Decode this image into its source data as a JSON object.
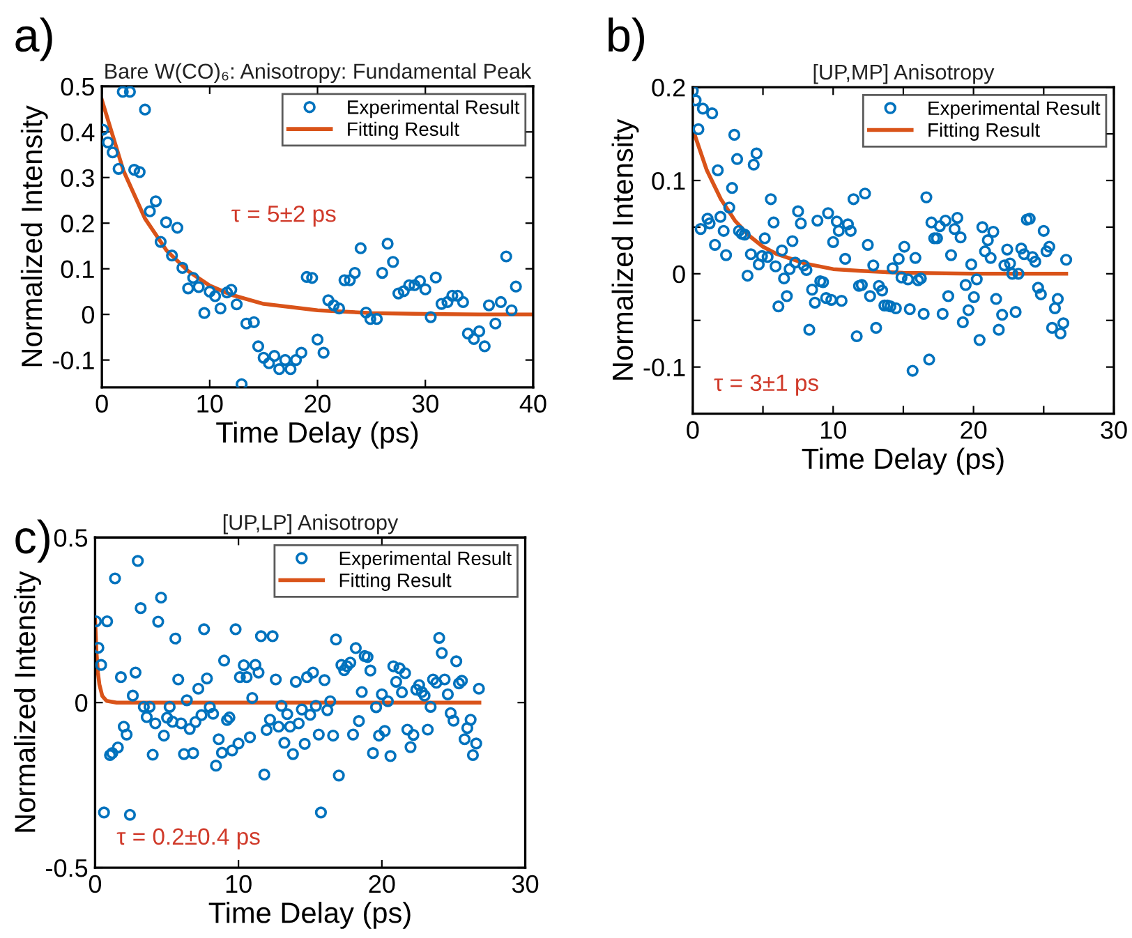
{
  "chart_data": [
    {
      "type": "scatter",
      "title": "Bare W(CO)₆: Anisotropy: Fundamental Peak",
      "xlabel": "Time Delay (ps)",
      "ylabel": "Normalized Intensity",
      "annotations": [
        "a)",
        "τ = 5±2 ps"
      ],
      "legend": "top right",
      "marker": "circle",
      "xlim": [
        0,
        40
      ],
      "ylim": [
        -0.16,
        0.5
      ],
      "xticks": [
        0,
        10,
        20,
        30,
        40
      ],
      "yticks": [
        -0.1,
        0,
        0.1,
        0.2,
        0.3,
        0.4,
        0.5
      ],
      "series": [
        {
          "name": "Experimental Result",
          "color": "#0072bd",
          "x": [
            0.1,
            0.56,
            1.0,
            1.55,
            1.94,
            2.6,
            3.0,
            3.5,
            4.0,
            4.45,
            5.0,
            5.45,
            5.96,
            6.5,
            7.0,
            7.47,
            8.0,
            8.47,
            8.98,
            9.5,
            10.0,
            10.5,
            11.0,
            11.6,
            12.0,
            12.5,
            12.96,
            13.4,
            14.1,
            14.5,
            15.0,
            15.5,
            16.0,
            16.45,
            17.0,
            17.5,
            18.0,
            18.5,
            19.0,
            19.5,
            20.0,
            20.56,
            21.0,
            21.5,
            22.0,
            22.5,
            23.0,
            23.46,
            24.0,
            24.5,
            24.9,
            25.5,
            26.0,
            26.5,
            27.0,
            27.5,
            28.0,
            28.5,
            29.0,
            29.5,
            30.0,
            30.5,
            30.97,
            31.5,
            32.05,
            32.5,
            33.0,
            33.5,
            33.95,
            34.5,
            35.0,
            35.5,
            35.9,
            36.5,
            37.0,
            37.5,
            38.0,
            38.4
          ],
          "values": [
            0.405,
            0.377,
            0.355,
            0.319,
            0.488,
            0.488,
            0.317,
            0.312,
            0.449,
            0.226,
            0.248,
            0.159,
            0.202,
            0.129,
            0.19,
            0.102,
            0.057,
            0.08,
            0.06,
            0.003,
            0.05,
            0.04,
            0.013,
            0.048,
            0.054,
            0.022,
            -0.153,
            -0.02,
            -0.017,
            -0.07,
            -0.095,
            -0.107,
            -0.091,
            -0.12,
            -0.1,
            -0.12,
            -0.1,
            -0.084,
            0.082,
            0.08,
            -0.055,
            -0.084,
            0.031,
            0.02,
            0.013,
            0.075,
            0.075,
            0.091,
            0.145,
            0.004,
            -0.01,
            -0.01,
            0.091,
            0.155,
            0.115,
            0.046,
            0.051,
            0.064,
            0.064,
            0.073,
            0.055,
            -0.006,
            0.081,
            0.023,
            0.027,
            0.041,
            0.041,
            0.027,
            -0.042,
            -0.054,
            -0.037,
            -0.07,
            0.02,
            -0.02,
            0.027,
            0.127,
            0.009,
            0.061
          ]
        },
        {
          "name": "Fitting Result",
          "type": "line",
          "marker": "none",
          "color": "#d95319",
          "x": [
            0,
            2,
            4,
            6,
            8,
            10,
            12,
            15,
            20,
            25,
            30,
            35,
            40
          ],
          "values": [
            0.47,
            0.315,
            0.21,
            0.14,
            0.095,
            0.063,
            0.043,
            0.023,
            0.009,
            0.003,
            0.001,
            0,
            0
          ]
        }
      ]
    },
    {
      "type": "scatter",
      "title": "[UP,MP] Anisotropy",
      "xlabel": "Time Delay (ps)",
      "ylabel": "Normalized Intensity",
      "annotations": [
        "b)",
        "τ = 3±1 ps"
      ],
      "legend": "top right",
      "marker": "circle",
      "xlim": [
        0,
        30
      ],
      "ylim": [
        -0.15,
        0.2
      ],
      "xticks": [
        0,
        {
          "value": 5,
          "label": null
        },
        10,
        {
          "value": 15,
          "label": null
        },
        20,
        {
          "value": 25,
          "label": null
        },
        30
      ],
      "yticks": [
        -0.1,
        {
          "value": -0.05,
          "label": null
        },
        0,
        {
          "value": 0.05,
          "label": null
        },
        0.1,
        {
          "value": 0.15,
          "label": null
        },
        0.2
      ],
      "series": [
        {
          "name": "Experimental Result",
          "color": "#0072bd",
          "x": [
            0,
            0.2,
            0.4,
            0.72,
            0.56,
            1.05,
            1.2,
            1.38,
            1.58,
            1.78,
            1.97,
            2.2,
            2.37,
            2.6,
            2.8,
            2.96,
            3.16,
            3.29,
            3.49,
            3.7,
            3.9,
            4.14,
            4.34,
            4.54,
            4.7,
            4.93,
            5.13,
            5.33,
            5.56,
            5.76,
            5.9,
            6.1,
            6.35,
            6.5,
            6.7,
            6.9,
            7.1,
            7.3,
            7.5,
            7.7,
            7.9,
            8.1,
            8.3,
            8.5,
            8.7,
            8.88,
            9.08,
            9.28,
            9.5,
            9.64,
            9.87,
            10.0,
            10.26,
            10.4,
            10.6,
            10.86,
            11.05,
            11.25,
            11.45,
            11.68,
            11.84,
            12.04,
            12.27,
            12.47,
            12.63,
            12.86,
            13.06,
            13.26,
            13.49,
            13.65,
            13.88,
            14.08,
            14.24,
            14.47,
            14.67,
            14.87,
            15.07,
            15.33,
            15.46,
            15.66,
            15.86,
            16.05,
            16.25,
            16.45,
            16.64,
            16.84,
            17.0,
            17.2,
            17.4,
            17.6,
            17.8,
            18.0,
            18.2,
            18.4,
            18.65,
            18.85,
            19.08,
            19.24,
            19.44,
            19.64,
            19.84,
            20.03,
            20.23,
            20.43,
            20.63,
            20.82,
            21.02,
            21.22,
            21.41,
            21.61,
            21.8,
            22.04,
            22.2,
            22.4,
            22.6,
            22.76,
            23.0,
            23.2,
            23.4,
            23.6,
            23.8,
            24.0,
            24.2,
            24.4,
            24.6,
            24.8,
            25.0,
            25.2,
            25.4,
            25.6,
            25.8,
            26.0,
            26.2,
            26.4,
            26.6
          ],
          "values": [
            0.196,
            0.186,
            0.155,
            0.177,
            0.048,
            0.059,
            0.054,
            0.172,
            0.031,
            0.111,
            0.061,
            0.046,
            0.02,
            0.071,
            0.092,
            0.149,
            0.123,
            0.046,
            0.043,
            0.042,
            -0.002,
            0.021,
            0.117,
            0.129,
            0.01,
            0.019,
            0.038,
            0.018,
            0.08,
            0.055,
            0.008,
            -0.035,
            0.025,
            -0.005,
            -0.024,
            0.005,
            0.035,
            0.012,
            0.067,
            0.054,
            0.009,
            0.004,
            -0.06,
            -0.017,
            -0.031,
            0.057,
            -0.008,
            -0.009,
            -0.026,
            0.065,
            -0.028,
            0.034,
            0.056,
            0.046,
            -0.029,
            0.016,
            0.053,
            0.046,
            0.08,
            -0.067,
            -0.013,
            -0.012,
            0.086,
            0.031,
            -0.024,
            0.009,
            -0.058,
            -0.013,
            -0.018,
            -0.034,
            -0.034,
            -0.035,
            0.006,
            -0.037,
            0.016,
            -0.004,
            0.029,
            -0.006,
            -0.038,
            -0.104,
            0.017,
            -0.007,
            -0.005,
            -0.043,
            0.082,
            -0.092,
            0.055,
            0.038,
            0.038,
            0.051,
            -0.043,
            0.057,
            -0.024,
            0.02,
            0.048,
            0.06,
            0.039,
            -0.052,
            -0.012,
            -0.039,
            0.01,
            -0.025,
            -0.006,
            -0.071,
            0.05,
            0.024,
            0.036,
            0.017,
            0.045,
            -0.027,
            -0.06,
            -0.044,
            0.009,
            0.026,
            0.011,
            0,
            -0.041,
            0,
            0.027,
            0.021,
            0.058,
            0.059,
            0.018,
            0.013,
            -0.015,
            -0.022,
            0.046,
            0.024,
            0.029,
            -0.058,
            -0.037,
            -0.027,
            -0.064,
            -0.053,
            0.015
          ]
        },
        {
          "name": "Fitting Result",
          "type": "line",
          "marker": "none",
          "color": "#d95319",
          "x": [
            0,
            1,
            2,
            3,
            4,
            5,
            6,
            8,
            10,
            12,
            15,
            20,
            26.6
          ],
          "values": [
            0.155,
            0.111,
            0.08,
            0.057,
            0.041,
            0.029,
            0.021,
            0.011,
            0.005,
            0.003,
            0.001,
            0,
            0
          ]
        }
      ]
    },
    {
      "type": "scatter",
      "title": "[UP,LP] Anisotropy",
      "xlabel": "Time Delay (ps)",
      "ylabel": "Normalized Intensity",
      "annotations": [
        "c)",
        "τ = 0.2±0.4 ps"
      ],
      "legend": "top right",
      "marker": "circle",
      "xlim": [
        0,
        30
      ],
      "ylim": [
        -0.5,
        0.5
      ],
      "xticks": [
        0,
        10,
        20,
        30
      ],
      "yticks": [
        -0.5,
        0,
        0.5
      ],
      "series": [
        {
          "name": "Experimental Result",
          "color": "#0072bd",
          "x": [
            0.06,
            0.23,
            0.42,
            0.62,
            0.84,
            1.04,
            1.2,
            1.39,
            1.59,
            1.8,
            2.0,
            2.2,
            2.43,
            2.63,
            2.82,
            2.98,
            3.18,
            3.4,
            3.6,
            3.8,
            4.02,
            4.2,
            4.4,
            4.6,
            4.8,
            5.02,
            5.2,
            5.4,
            5.6,
            5.8,
            6.0,
            6.2,
            6.4,
            6.6,
            6.84,
            7.0,
            7.2,
            7.42,
            7.6,
            7.8,
            8.0,
            8.23,
            8.43,
            8.62,
            8.85,
            9.0,
            9.2,
            9.37,
            9.56,
            9.8,
            10.0,
            10.1,
            10.37,
            10.57,
            10.8,
            10.96,
            11.18,
            11.4,
            11.57,
            11.8,
            11.96,
            12.2,
            12.38,
            12.6,
            12.8,
            13.0,
            13.2,
            13.4,
            13.6,
            13.8,
            14.0,
            14.2,
            14.42,
            14.62,
            14.78,
            15.0,
            15.2,
            15.4,
            15.6,
            15.75,
            16.0,
            16.2,
            16.4,
            16.6,
            16.8,
            17.0,
            17.18,
            17.37,
            17.57,
            17.8,
            17.99,
            18.18,
            18.4,
            18.6,
            18.8,
            19.0,
            19.2,
            19.38,
            19.6,
            19.8,
            20.0,
            20.2,
            20.42,
            20.6,
            20.8,
            21.0,
            21.23,
            21.4,
            21.62,
            21.78,
            22.0,
            22.2,
            22.4,
            22.6,
            22.79,
            22.98,
            23.2,
            23.4,
            23.57,
            23.8,
            24.0,
            24.18,
            24.38,
            24.6,
            24.8,
            25.0,
            25.19,
            25.38,
            25.58,
            25.77,
            25.96,
            26.19,
            26.35,
            26.58,
            26.77
          ],
          "values": [
            0.246,
            0.166,
            0.114,
            -0.333,
            0.246,
            -0.159,
            -0.153,
            0.376,
            -0.136,
            0.077,
            -0.073,
            -0.097,
            -0.34,
            0.021,
            0.091,
            0.429,
            0.286,
            -0.013,
            -0.044,
            -0.013,
            -0.158,
            -0.063,
            0.245,
            0.318,
            -0.1,
            -0.046,
            -0.013,
            -0.058,
            0.194,
            0.07,
            -0.063,
            -0.156,
            0.007,
            -0.08,
            -0.153,
            -0.059,
            0.042,
            -0.038,
            0.222,
            0.073,
            -0.014,
            -0.034,
            -0.191,
            -0.111,
            -0.152,
            0.127,
            -0.053,
            -0.045,
            -0.145,
            0.222,
            -0.124,
            0.077,
            0.113,
            0.077,
            -0.105,
            0.014,
            0.114,
            0.091,
            0.201,
            -0.218,
            -0.083,
            -0.052,
            0.201,
            0.07,
            -0.073,
            -0.01,
            -0.122,
            -0.035,
            -0.073,
            -0.156,
            0.063,
            -0.063,
            -0.021,
            -0.125,
            0.077,
            -0.037,
            0.091,
            -0.01,
            -0.097,
            -0.333,
            0.068,
            -0.023,
            0.004,
            -0.1,
            0.191,
            -0.221,
            0.114,
            0.098,
            0.11,
            0.121,
            -0.097,
            0.165,
            -0.056,
            0.032,
            0.141,
            0.138,
            0.097,
            -0.153,
            -0.014,
            -0.1,
            0.025,
            -0.086,
            0.004,
            -0.162,
            0.11,
            0.063,
            0.104,
            0.031,
            0.089,
            -0.082,
            -0.135,
            -0.098,
            0.039,
            0.053,
            0.032,
            0.021,
            -0.082,
            -0.013,
            0.07,
            0.06,
            0.196,
            0.15,
            0.07,
            0.025,
            -0.032,
            -0.055,
            0.125,
            0.058,
            0.066,
            -0.111,
            -0.077,
            -0.052,
            -0.159,
            -0.124,
            0.042
          ]
        },
        {
          "name": "Fitting Result",
          "type": "line",
          "marker": "none",
          "color": "#d95319",
          "x": [
            0,
            0.1,
            0.2,
            0.3,
            0.5,
            0.8,
            1.5,
            26.8
          ],
          "values": [
            0.25,
            0.15,
            0.09,
            0.055,
            0.02,
            0.005,
            0,
            0
          ]
        }
      ]
    }
  ]
}
